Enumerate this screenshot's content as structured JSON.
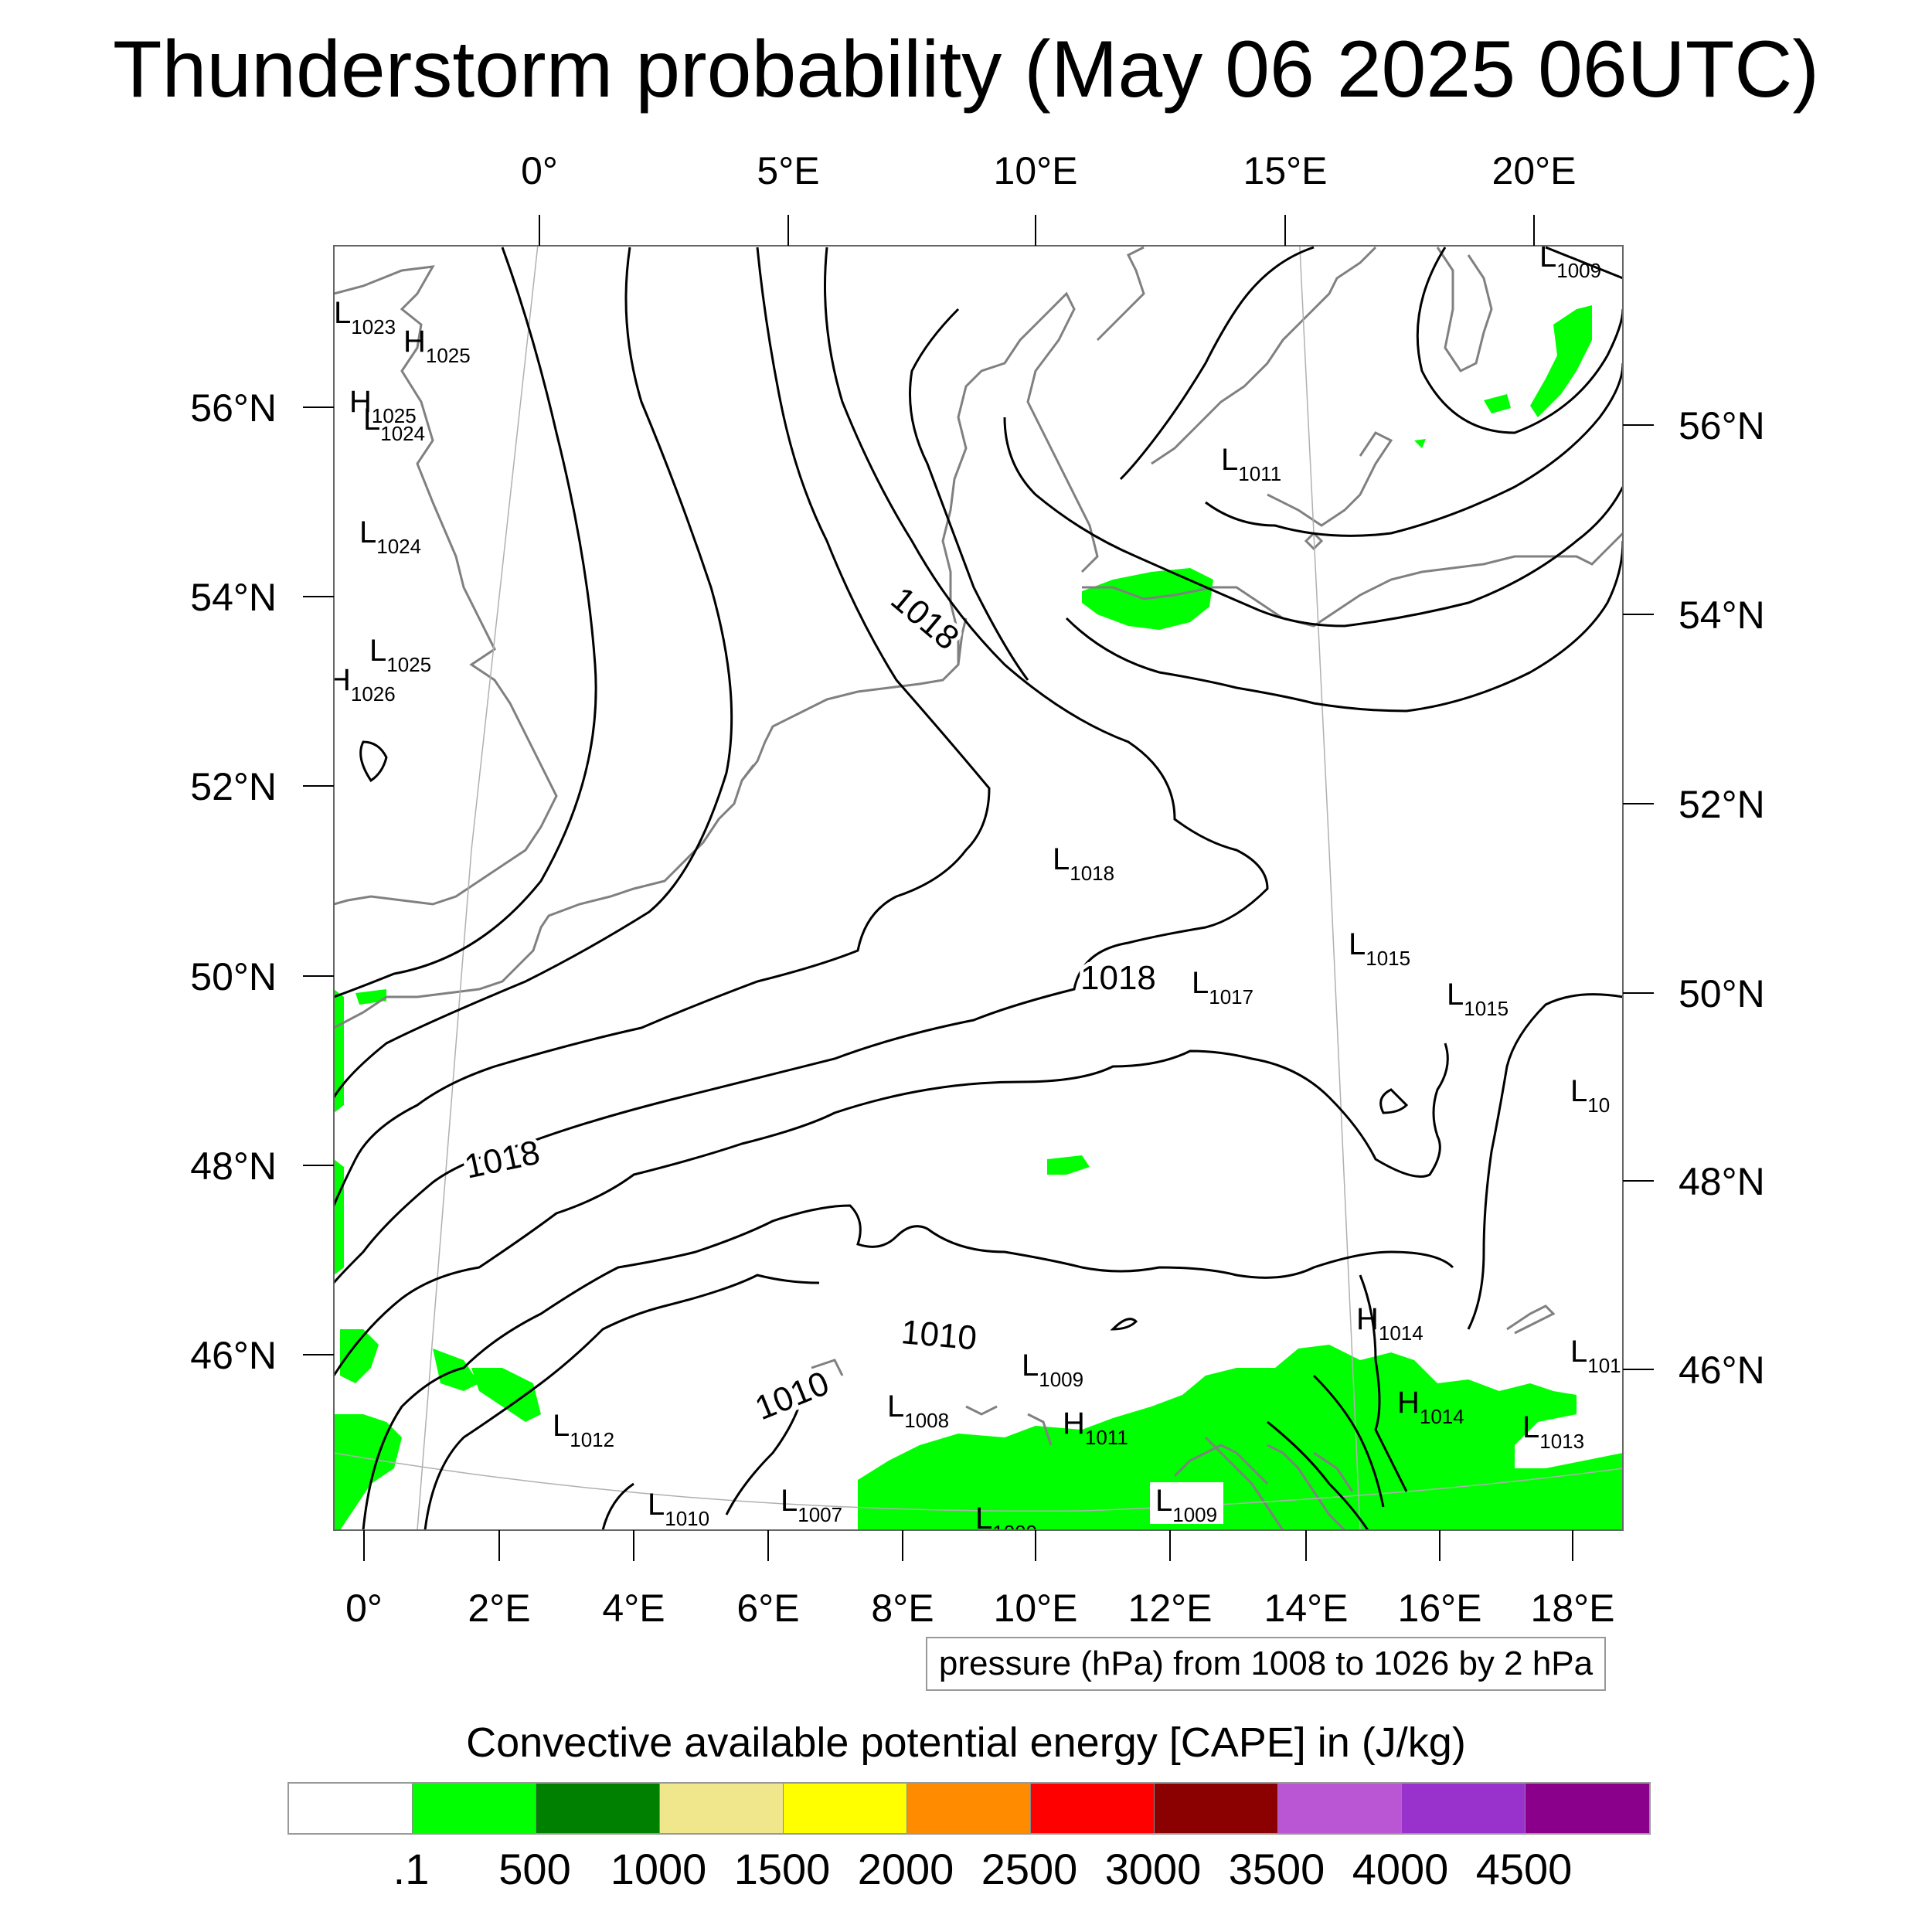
{
  "title": "Thunderstorm probability (May 06 2025 06UTC)",
  "top_lon_labels": [
    "0°",
    "5°E",
    "10°E",
    "15°E",
    "20°E"
  ],
  "bottom_lon_labels": [
    "0°",
    "2°E",
    "4°E",
    "6°E",
    "8°E",
    "10°E",
    "12°E",
    "14°E",
    "16°E",
    "18°E"
  ],
  "left_lat_labels": [
    "56°N",
    "54°N",
    "52°N",
    "50°N",
    "48°N",
    "46°N"
  ],
  "right_lat_labels": [
    "56°N",
    "54°N",
    "52°N",
    "50°N",
    "48°N",
    "46°N"
  ],
  "contour_labels": [
    "1018",
    "1018",
    "1018",
    "1010",
    "1010"
  ],
  "pressure_centers": [
    {
      "t": "L",
      "v": "1023"
    },
    {
      "t": "H",
      "v": "1025"
    },
    {
      "t": "H",
      "v": "1025"
    },
    {
      "t": "L",
      "v": "1024"
    },
    {
      "t": "L",
      "v": "1024"
    },
    {
      "t": "L",
      "v": "1025"
    },
    {
      "t": "H",
      "v": "1026"
    },
    {
      "t": "L",
      "v": "1009"
    },
    {
      "t": "L",
      "v": "1011"
    },
    {
      "t": "L",
      "v": "1018"
    },
    {
      "t": "L",
      "v": "1015"
    },
    {
      "t": "L",
      "v": "1017"
    },
    {
      "t": "L",
      "v": "1015"
    },
    {
      "t": "L",
      "v": "10"
    },
    {
      "t": "H",
      "v": "1014"
    },
    {
      "t": "L",
      "v": "101"
    },
    {
      "t": "L",
      "v": "1009"
    },
    {
      "t": "L",
      "v": "1012"
    },
    {
      "t": "L",
      "v": "1008"
    },
    {
      "t": "H",
      "v": "1011"
    },
    {
      "t": "H",
      "v": "1014"
    },
    {
      "t": "L",
      "v": "1013"
    },
    {
      "t": "L",
      "v": "1010"
    },
    {
      "t": "L",
      "v": "1007"
    },
    {
      "t": "L",
      "v": "1009"
    },
    {
      "t": "L",
      "v": "1009"
    }
  ],
  "contour_info": "pressure (hPa) from 1008 to 1026 by 2 hPa",
  "colorbar": {
    "title": "Convective available potential energy [CAPE] in (J/kg)",
    "colors": [
      "#ffffff",
      "#00ff00",
      "#008000",
      "#f0e68c",
      "#ffff00",
      "#ff8c00",
      "#ff0000",
      "#8b0000",
      "#ba55d3",
      "#9932cc",
      "#8b008b"
    ],
    "labels": [
      ".1",
      "500",
      "1000",
      "1500",
      "2000",
      "2500",
      "3000",
      "3500",
      "4000",
      "4500"
    ]
  },
  "colors": {
    "cape_low": "#00ff00",
    "coast": "#808080",
    "isobar": "#000000"
  }
}
